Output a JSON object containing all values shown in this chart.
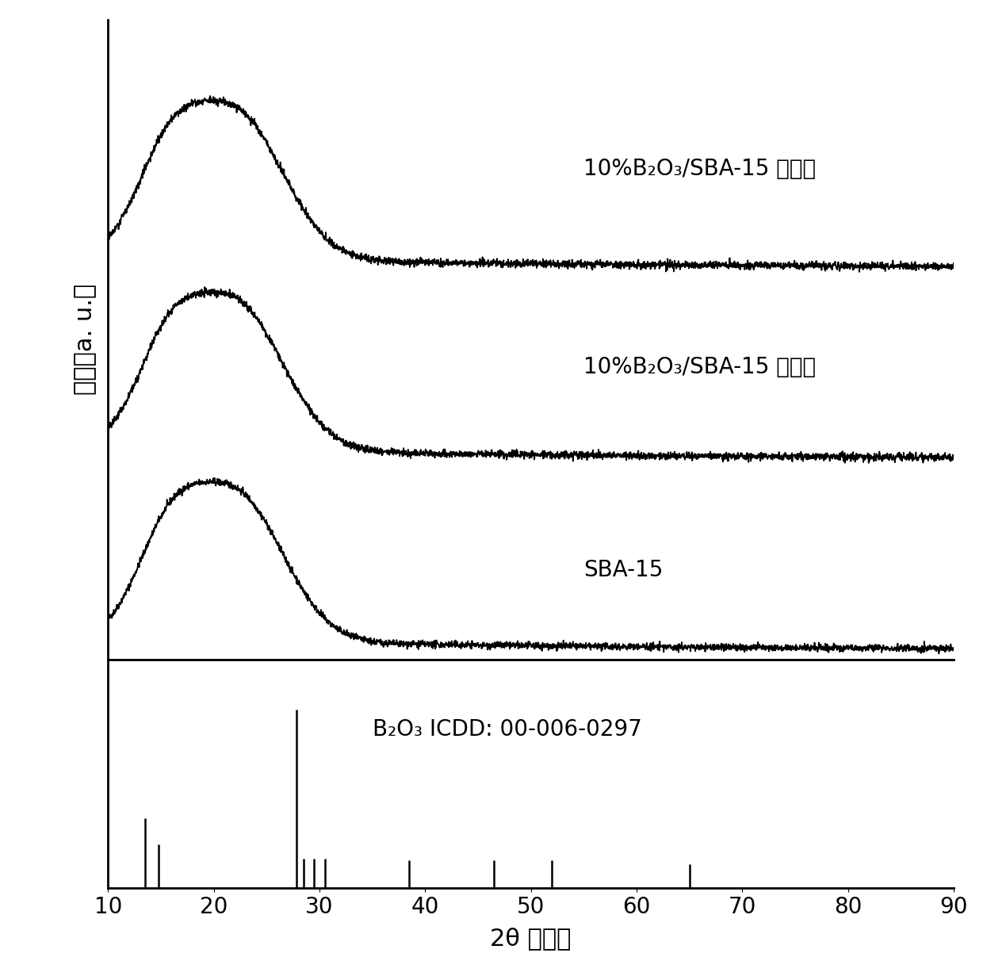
{
  "xlim": [
    10,
    90
  ],
  "xlabel": "2θ （度）",
  "ylabel": "强度（a. u.）",
  "line_color": "#000000",
  "background_color": "#ffffff",
  "label_after": "10%B₂O₃/SBA-15 反应后",
  "label_before": "10%B₂O₃/SBA-15 反应前",
  "label_sba": "SBA-15",
  "icdd_label": "B₂O₃ ICDD: 00-006-0297",
  "noise_amplitude": 0.012,
  "xlabel_fontsize": 22,
  "ylabel_fontsize": 22,
  "tick_fontsize": 20,
  "label_fontsize": 20,
  "b2o3_positions": [
    13.5,
    14.8,
    27.8,
    28.5,
    29.5,
    30.5,
    38.5,
    46.5,
    52.0,
    65.0
  ],
  "b2o3_heights": [
    0.35,
    0.22,
    0.9,
    0.15,
    0.15,
    0.15,
    0.14,
    0.14,
    0.14,
    0.12
  ]
}
